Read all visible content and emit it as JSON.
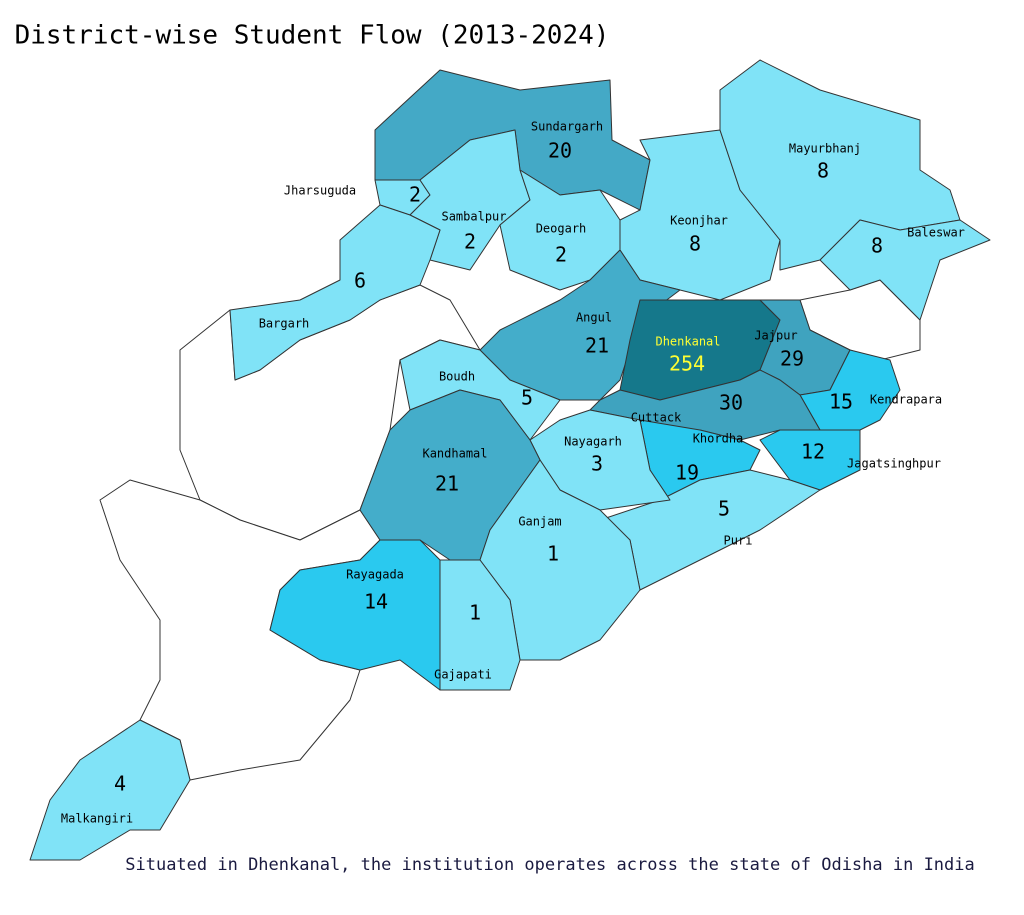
{
  "map": {
    "title": "District-wise Student Flow (2013-2024)",
    "footnote": "Situated in Dhenkanal, the institution operates across the state of Odisha in India",
    "highlight_color": "#ffff33",
    "districts": [
      {
        "name": "Sundargarh",
        "value": 20,
        "color": "#44a9c6"
      },
      {
        "name": "Jharsuguda",
        "value": 2,
        "color": "#80e3f7"
      },
      {
        "name": "Sambalpur",
        "value": 2,
        "color": "#80e3f7"
      },
      {
        "name": "Deogarh",
        "value": 2,
        "color": "#80e3f7"
      },
      {
        "name": "Bargarh",
        "value": 6,
        "color": "#80e3f7"
      },
      {
        "name": "Keonjhar",
        "value": 8,
        "color": "#80e3f7"
      },
      {
        "name": "Mayurbhanj",
        "value": 8,
        "color": "#80e3f7"
      },
      {
        "name": "Baleswar",
        "value": 8,
        "color": "#80e3f7"
      },
      {
        "name": "Angul",
        "value": 21,
        "color": "#44adca"
      },
      {
        "name": "Dhenkanal",
        "value": 254,
        "color": "#15788b"
      },
      {
        "name": "Jajpur",
        "value": 29,
        "color": "#3fa3bf"
      },
      {
        "name": "Kendrapara",
        "value": 15,
        "color": "#2ac9ef"
      },
      {
        "name": "Cuttack",
        "value": 30,
        "color": "#3fa3bf"
      },
      {
        "name": "Jagatsinghpur",
        "value": 12,
        "color": "#2ac9ef"
      },
      {
        "name": "Khordha",
        "value": 19,
        "color": "#2ac9ef"
      },
      {
        "name": "Puri",
        "value": 5,
        "color": "#80e3f7"
      },
      {
        "name": "Nayagarh",
        "value": 3,
        "color": "#80e3f7"
      },
      {
        "name": "Boudh",
        "value": 5,
        "color": "#80e3f7"
      },
      {
        "name": "Kandhamal",
        "value": 21,
        "color": "#44adca"
      },
      {
        "name": "Ganjam",
        "value": 1,
        "color": "#80e3f7"
      },
      {
        "name": "Gajapati",
        "value": 1,
        "color": "#80e3f7"
      },
      {
        "name": "Rayagada",
        "value": 14,
        "color": "#2ac9ef"
      },
      {
        "name": "Malkangiri",
        "value": 4,
        "color": "#80e3f7"
      }
    ]
  }
}
